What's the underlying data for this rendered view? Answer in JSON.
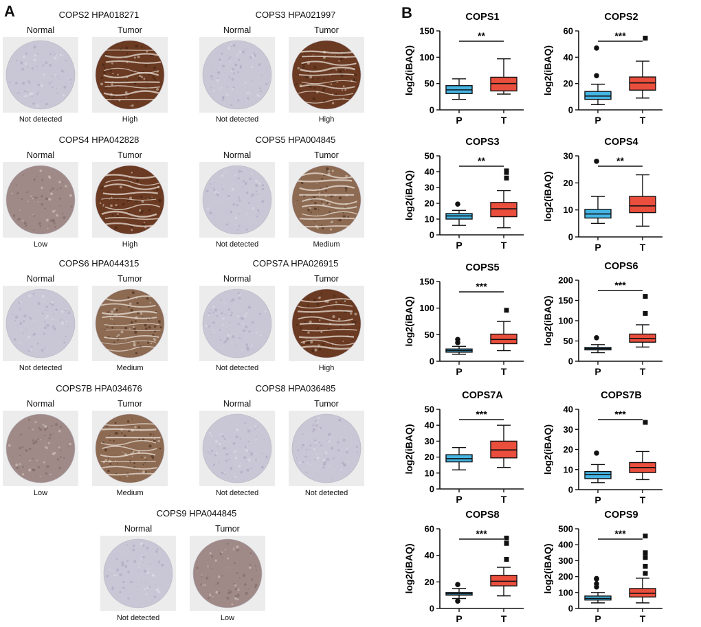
{
  "panels": {
    "a_label": "A",
    "b_label": "B"
  },
  "ihc": [
    {
      "title": "COPS2 HPA018271",
      "normal_label": "Normal",
      "tumor_label": "Tumor",
      "normal_level": "Not detected",
      "tumor_level": "High"
    },
    {
      "title": "COPS3 HPA021997",
      "normal_label": "Normal",
      "tumor_label": "Tumor",
      "normal_level": "Not detected",
      "tumor_level": "High"
    },
    {
      "title": "COPS4 HPA042828",
      "normal_label": "Normal",
      "tumor_label": "Tumor",
      "normal_level": "Low",
      "tumor_level": "High"
    },
    {
      "title": "COPS5 HPA004845",
      "normal_label": "Normal",
      "tumor_label": "Tumor",
      "normal_level": "Not detected",
      "tumor_level": "Medium"
    },
    {
      "title": "COPS6 HPA044315",
      "normal_label": "Normal",
      "tumor_label": "Tumor",
      "normal_level": "Not detected",
      "tumor_level": "Medium"
    },
    {
      "title": "COPS7A HPA026915",
      "normal_label": "Normal",
      "tumor_label": "Tumor",
      "normal_level": "Not detected",
      "tumor_level": "High"
    },
    {
      "title": "COPS7B HPA034676",
      "normal_label": "Normal",
      "tumor_label": "Tumor",
      "normal_level": "Low",
      "tumor_level": "Medium"
    },
    {
      "title": "COPS8 HPA036485",
      "normal_label": "Normal",
      "tumor_label": "Tumor",
      "normal_level": "Not detected",
      "tumor_level": "Not detected"
    },
    {
      "title": "COPS9 HPA044845",
      "normal_label": "Normal",
      "tumor_label": "Tumor",
      "normal_level": "Not detected",
      "tumor_level": "Low"
    }
  ],
  "stain_colors": {
    "Not detected": "#c9c6d6",
    "Low": "#9f8a88",
    "Medium": "#8d6a52",
    "High": "#6b3a22",
    "background": "#ececec"
  },
  "chart_data": [
    {
      "type": "box",
      "title": "COPS1",
      "ylabel": "log2(iBAQ)",
      "categories": [
        "P",
        "T"
      ],
      "ylim": [
        0,
        150
      ],
      "yticks": [
        0,
        50,
        100,
        150
      ],
      "significance": "**",
      "series": [
        {
          "name": "P",
          "color": "#45b5e4",
          "min": 20,
          "q1": 31,
          "median": 38,
          "q3": 46,
          "max": 59,
          "outliers": [],
          "outlier_marker": "circle"
        },
        {
          "name": "T",
          "color": "#ea4e3d",
          "min": 30,
          "q1": 36,
          "median": 50,
          "q3": 62,
          "max": 97,
          "outliers": [],
          "outlier_marker": "square"
        }
      ]
    },
    {
      "type": "box",
      "title": "COPS2",
      "ylabel": "log2(iBAQ)",
      "categories": [
        "P",
        "T"
      ],
      "ylim": [
        0,
        60
      ],
      "yticks": [
        0,
        20,
        40,
        60
      ],
      "significance": "***",
      "series": [
        {
          "name": "P",
          "color": "#45b5e4",
          "min": 4,
          "q1": 8,
          "median": 10.5,
          "q3": 14,
          "max": 19.5,
          "outliers": [
            26,
            47
          ],
          "outlier_marker": "circle"
        },
        {
          "name": "T",
          "color": "#ea4e3d",
          "min": 9,
          "q1": 15,
          "median": 20.5,
          "q3": 25,
          "max": 37,
          "outliers": [
            54.5
          ],
          "outlier_marker": "square"
        }
      ]
    },
    {
      "type": "box",
      "title": "COPS3",
      "ylabel": "log2(iBAQ)",
      "categories": [
        "P",
        "T"
      ],
      "ylim": [
        0,
        50
      ],
      "yticks": [
        0,
        10,
        20,
        30,
        40,
        50
      ],
      "significance": "**",
      "series": [
        {
          "name": "P",
          "color": "#45b5e4",
          "min": 6,
          "q1": 10,
          "median": 12,
          "q3": 13.5,
          "max": 15.5,
          "outliers": [
            19.5
          ],
          "outlier_marker": "circle"
        },
        {
          "name": "T",
          "color": "#ea4e3d",
          "min": 4.5,
          "q1": 11.5,
          "median": 16.5,
          "q3": 20.5,
          "max": 28,
          "outliers": [
            36,
            39.5,
            40.5
          ],
          "outlier_marker": "square"
        }
      ]
    },
    {
      "type": "box",
      "title": "COPS4",
      "ylabel": "log2(iBAQ)",
      "categories": [
        "P",
        "T"
      ],
      "ylim": [
        0,
        30
      ],
      "yticks": [
        0,
        10,
        20,
        30
      ],
      "significance": "**",
      "series": [
        {
          "name": "P",
          "color": "#45b5e4",
          "min": 5,
          "q1": 7,
          "median": 8.5,
          "q3": 10.2,
          "max": 15,
          "outliers": [
            28
          ],
          "outlier_marker": "circle"
        },
        {
          "name": "T",
          "color": "#ea4e3d",
          "min": 4,
          "q1": 9,
          "median": 11.5,
          "q3": 15,
          "max": 23,
          "outliers": [],
          "outlier_marker": "square"
        }
      ]
    },
    {
      "type": "box",
      "title": "COPS5",
      "ylabel": "log2(iBAQ)",
      "categories": [
        "P",
        "T"
      ],
      "ylim": [
        0,
        150
      ],
      "yticks": [
        0,
        50,
        100,
        150
      ],
      "significance": "***",
      "series": [
        {
          "name": "P",
          "color": "#45b5e4",
          "min": 13,
          "q1": 17,
          "median": 20,
          "q3": 23,
          "max": 28,
          "outliers": [
            35,
            41
          ],
          "outlier_marker": "circle"
        },
        {
          "name": "T",
          "color": "#ea4e3d",
          "min": 20,
          "q1": 33,
          "median": 41,
          "q3": 51,
          "max": 75,
          "outliers": [
            96
          ],
          "outlier_marker": "square"
        }
      ]
    },
    {
      "type": "box",
      "title": "COPS6",
      "ylabel": "log2(iBAQ)",
      "categories": [
        "P",
        "T"
      ],
      "ylim": [
        0,
        200
      ],
      "yticks": [
        0,
        50,
        100,
        150,
        200
      ],
      "significance": "***",
      "series": [
        {
          "name": "P",
          "color": "#45b5e4",
          "min": 21,
          "q1": 28,
          "median": 31,
          "q3": 34,
          "max": 41,
          "outliers": [
            58
          ],
          "outlier_marker": "circle"
        },
        {
          "name": "T",
          "color": "#ea4e3d",
          "min": 35,
          "q1": 47,
          "median": 56,
          "q3": 67,
          "max": 90,
          "outliers": [
            118,
            160
          ],
          "outlier_marker": "square"
        }
      ]
    },
    {
      "type": "box",
      "title": "COPS7A",
      "ylabel": "log2(iBAQ)",
      "categories": [
        "P",
        "T"
      ],
      "ylim": [
        0,
        50
      ],
      "yticks": [
        0,
        10,
        20,
        30,
        40,
        50
      ],
      "significance": "***",
      "series": [
        {
          "name": "P",
          "color": "#45b5e4",
          "min": 12,
          "q1": 17,
          "median": 19,
          "q3": 21.5,
          "max": 26,
          "outliers": [],
          "outlier_marker": "circle"
        },
        {
          "name": "T",
          "color": "#ea4e3d",
          "min": 13.5,
          "q1": 19.5,
          "median": 24.5,
          "q3": 30,
          "max": 40,
          "outliers": [],
          "outlier_marker": "square"
        }
      ]
    },
    {
      "type": "box",
      "title": "COPS7B",
      "ylabel": "log2(iBAQ)",
      "categories": [
        "P",
        "T"
      ],
      "ylim": [
        0,
        40
      ],
      "yticks": [
        0,
        10,
        20,
        30,
        40
      ],
      "significance": "***",
      "series": [
        {
          "name": "P",
          "color": "#45b5e4",
          "min": 3.5,
          "q1": 5.5,
          "median": 7.5,
          "q3": 9,
          "max": 12.5,
          "outliers": [
            18.2
          ],
          "outlier_marker": "circle"
        },
        {
          "name": "T",
          "color": "#ea4e3d",
          "min": 5,
          "q1": 8.5,
          "median": 11,
          "q3": 13.5,
          "max": 19,
          "outliers": [
            33.5
          ],
          "outlier_marker": "square"
        }
      ]
    },
    {
      "type": "box",
      "title": "COPS8",
      "ylabel": "log2(iBAQ)",
      "categories": [
        "P",
        "T"
      ],
      "ylim": [
        0,
        60
      ],
      "yticks": [
        0,
        20,
        40,
        60
      ],
      "significance": "***",
      "series": [
        {
          "name": "P",
          "color": "#45b5e4",
          "min": 7.5,
          "q1": 10,
          "median": 11,
          "q3": 12,
          "max": 15,
          "outliers": [
            5.5,
            18
          ],
          "outlier_marker": "circle"
        },
        {
          "name": "T",
          "color": "#ea4e3d",
          "min": 9.5,
          "q1": 17,
          "median": 20.5,
          "q3": 25,
          "max": 31,
          "outliers": [
            37,
            49,
            53
          ],
          "outlier_marker": "square"
        }
      ]
    },
    {
      "type": "box",
      "title": "COPS9",
      "ylabel": "log2(iBAQ)",
      "categories": [
        "P",
        "T"
      ],
      "ylim": [
        0,
        500
      ],
      "yticks": [
        0,
        100,
        200,
        300,
        400,
        500
      ],
      "significance": "***",
      "series": [
        {
          "name": "P",
          "color": "#45b5e4",
          "min": 35,
          "q1": 53,
          "median": 63,
          "q3": 78,
          "max": 100,
          "outliers": [
            135,
            155,
            185,
            188
          ],
          "outlier_marker": "circle"
        },
        {
          "name": "T",
          "color": "#ea4e3d",
          "min": 35,
          "q1": 72,
          "median": 95,
          "q3": 125,
          "max": 190,
          "outliers": [
            220,
            265,
            320,
            350,
            455
          ],
          "outlier_marker": "square"
        }
      ]
    }
  ]
}
